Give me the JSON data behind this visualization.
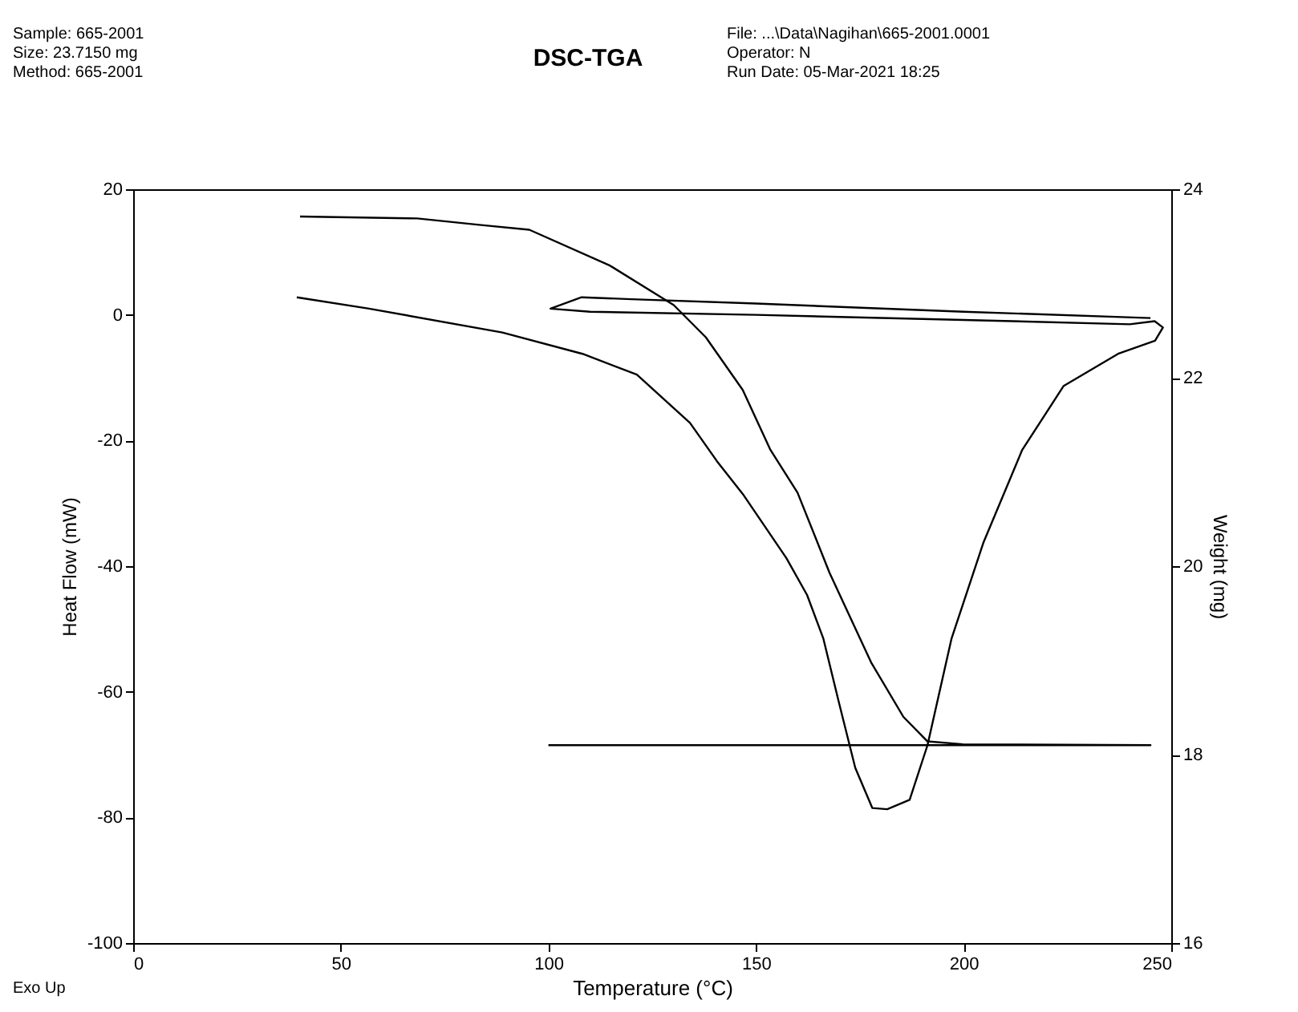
{
  "chart_data": {
    "type": "line",
    "title": "DSC-TGA",
    "xlabel": "Temperature (°C)",
    "ylabel": "Heat Flow (mW)",
    "y2label": "Weight (mg)",
    "annotations": [
      "Sample: 665-2001",
      "Size:  23.7150 mg",
      "Method: 665-2001",
      "File: ...\\Data\\Nagihan\\665-2001.0001",
      "Operator: N",
      "Run Date: 05-Mar-2021 18:25",
      "Exo Up"
    ],
    "xlim": [
      0,
      250
    ],
    "xticks": [
      0,
      50,
      100,
      150,
      200,
      250
    ],
    "ylim": [
      -100,
      20
    ],
    "yticks": [
      -100,
      -80,
      -60,
      -40,
      -20,
      0,
      20
    ],
    "y2lim": [
      16,
      24
    ],
    "y2ticks": [
      16,
      18,
      20,
      22,
      24
    ],
    "grid": false,
    "marker": "none",
    "line_style": "solid",
    "series": [
      {
        "color": "#000000",
        "axis": "y",
        "x": [
          39.4,
          56.8,
          88.9,
          108.2,
          121.3,
          134.1,
          140.6,
          146.8,
          157.3,
          162.3,
          166.2,
          170.0,
          173.9,
          178.0,
          181.6,
          187.0,
          191.3,
          197.1,
          204.8,
          214.1,
          224.1,
          237.2,
          246.1,
          248.0,
          246.0,
          240.0,
          200.0,
          150.0,
          110.0,
          100.5,
          108.0,
          120.0,
          150.0,
          200.0,
          245.0
        ],
        "values": [
          2.8,
          1.0,
          -2.8,
          -6.2,
          -9.5,
          -17.2,
          -23.3,
          -28.5,
          -38.7,
          -44.6,
          -51.5,
          -61.8,
          -72.1,
          -78.5,
          -78.7,
          -77.2,
          -68.5,
          -51.5,
          -36.2,
          -21.5,
          -11.3,
          -6.2,
          -4.1,
          -2.0,
          -1.0,
          -1.5,
          -0.8,
          0.0,
          0.5,
          1.0,
          2.8,
          2.5,
          1.8,
          0.5,
          -0.5
        ]
      },
      {
        "color": "#000000",
        "axis": "y2",
        "x": [
          40.2,
          68.4,
          83.8,
          95.4,
          114.8,
          130.2,
          137.9,
          146.8,
          153.4,
          160.0,
          167.7,
          177.7,
          185.5,
          191.3,
          199.8,
          245.0,
          100.0
        ],
        "values": [
          23.71,
          23.69,
          23.62,
          23.57,
          23.19,
          22.77,
          22.43,
          21.87,
          21.24,
          20.78,
          19.93,
          18.98,
          18.4,
          18.14,
          18.11,
          18.1,
          18.1
        ]
      }
    ]
  }
}
